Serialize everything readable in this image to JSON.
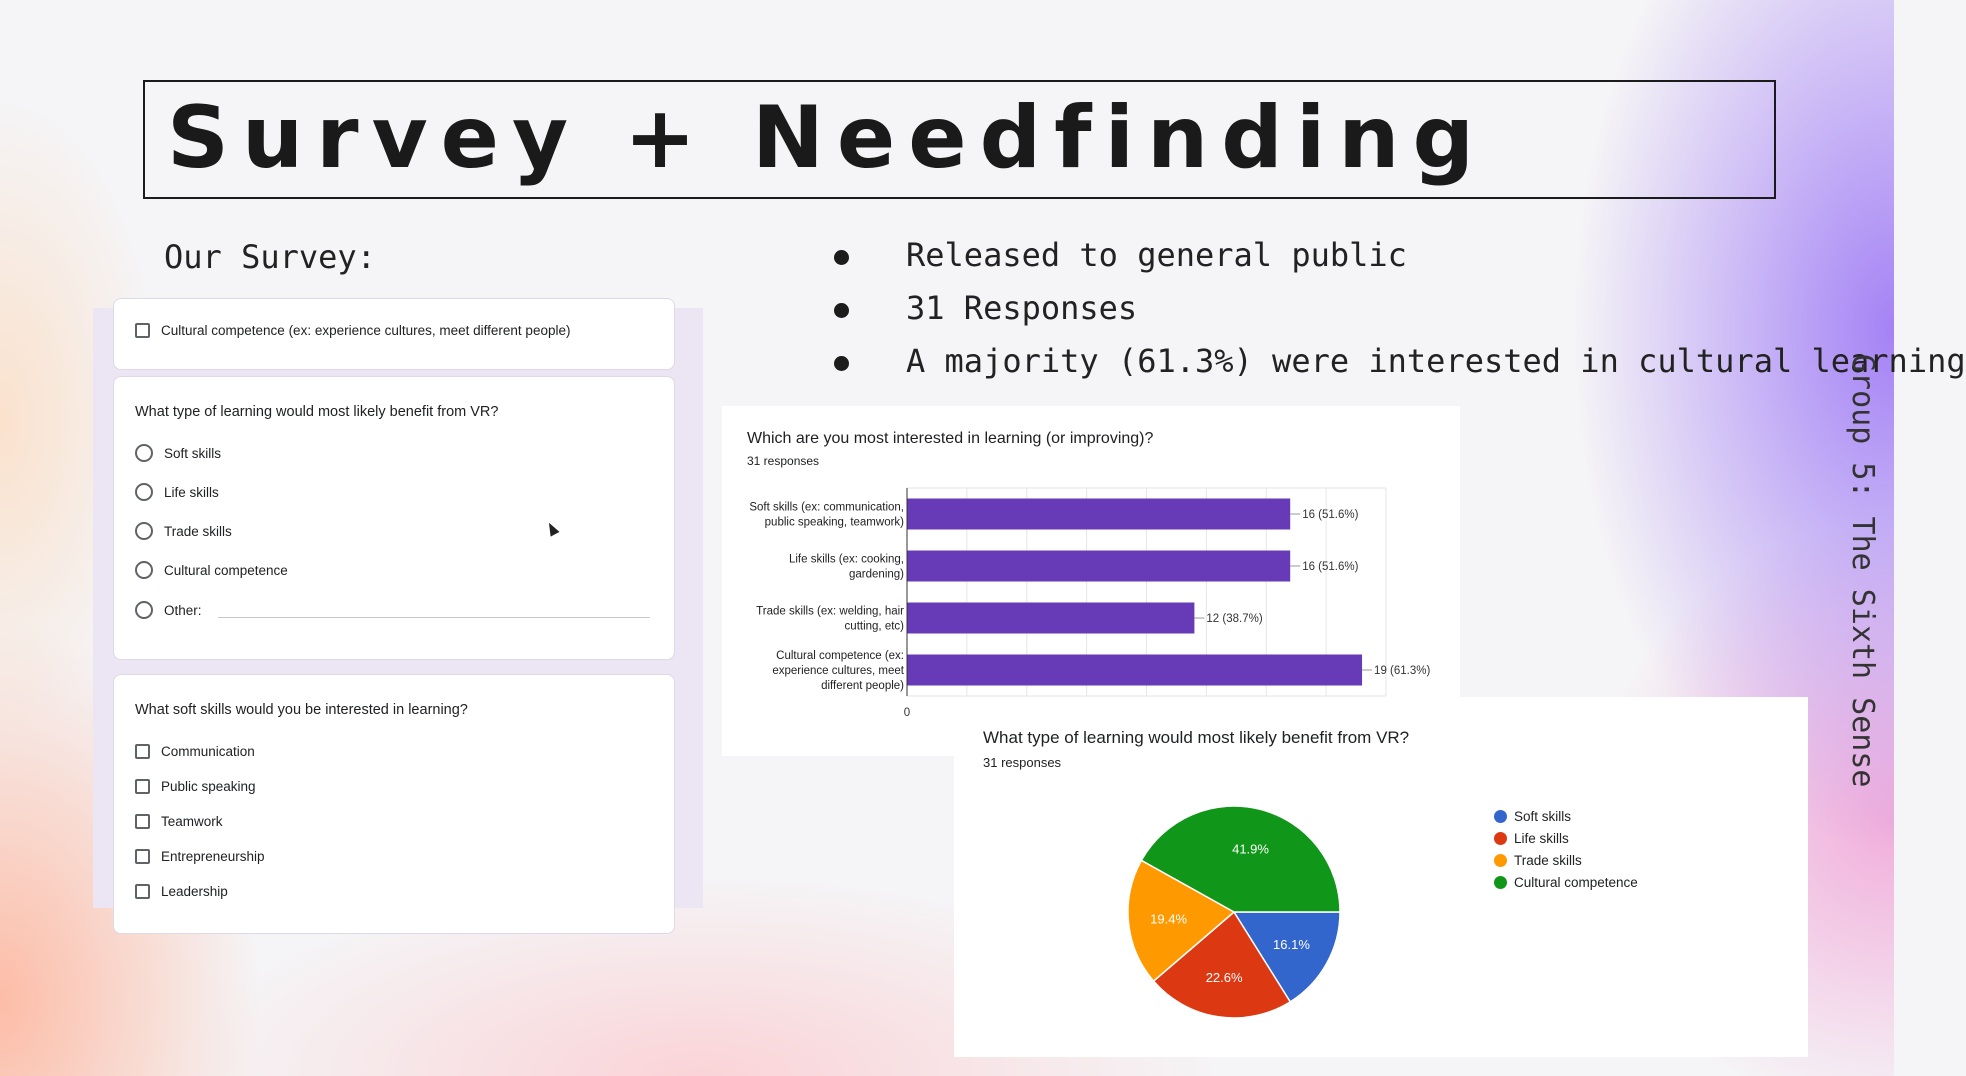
{
  "slide": {
    "title": "Survey + Needfinding",
    "left_heading": "Our Survey:",
    "bullets": [
      "Released to general public",
      "31 Responses",
      "A majority (61.3%) were interested in cultural learning"
    ],
    "side_label": "Group 5: The Sixth Sense"
  },
  "form": {
    "top_card": {
      "option": "Cultural competence (ex: experience cultures, meet different people)"
    },
    "q1": {
      "title": "What type of learning would most likely benefit from VR?",
      "options": [
        "Soft skills",
        "Life skills",
        "Trade skills",
        "Cultural competence",
        "Other:"
      ]
    },
    "q2": {
      "title": "What soft skills would you be interested in learning?",
      "options": [
        "Communication",
        "Public speaking",
        "Teamwork",
        "Entrepreneurship",
        "Leadership"
      ]
    }
  },
  "chart_data": [
    {
      "type": "bar",
      "orientation": "horizontal",
      "title": "Which are you most interested in learning (or improving)?",
      "subtitle": "31 responses",
      "categories": [
        [
          "Soft skills (ex: communication,",
          "public speaking, teamwork)"
        ],
        [
          "Life skills (ex: cooking,",
          "gardening)"
        ],
        [
          "Trade skills (ex: welding, hair",
          "cutting, etc)"
        ],
        [
          "Cultural competence (ex:",
          "experience cultures, meet",
          "different people)"
        ]
      ],
      "values": [
        16,
        16,
        12,
        19
      ],
      "data_labels": [
        "16 (51.6%)",
        "16 (51.6%)",
        "12 (38.7%)",
        "19 (61.3%)"
      ],
      "x_tick_labels": [
        "0"
      ],
      "xlim": [
        0,
        20
      ],
      "grid": true,
      "color": "#673ab7"
    },
    {
      "type": "pie",
      "title": "What type of learning would most likely benefit from VR?",
      "subtitle": "31 responses",
      "labels": [
        "Soft skills",
        "Life skills",
        "Trade skills",
        "Cultural competence"
      ],
      "values": [
        16.1,
        22.6,
        19.4,
        41.9
      ],
      "data_labels": [
        "16.1%",
        "22.6%",
        "19.4%",
        "41.9%"
      ],
      "colors": [
        "#3366cc",
        "#dc3912",
        "#ff9900",
        "#109618"
      ],
      "legend_position": "right"
    }
  ]
}
